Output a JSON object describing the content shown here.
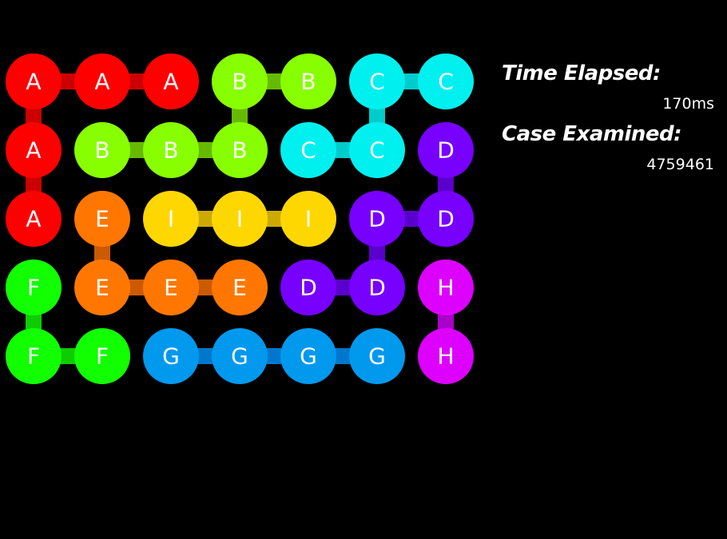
{
  "grid": {
    "rows": [
      [
        "A",
        "A",
        "A",
        "B",
        "B",
        "C",
        "C"
      ],
      [
        "A",
        "B",
        "B",
        "B",
        "C",
        "C",
        "D"
      ],
      [
        "A",
        "E",
        "I",
        "I",
        "I",
        "D",
        "D"
      ],
      [
        "F",
        "E",
        "E",
        "E",
        "D",
        "D",
        "H"
      ],
      [
        "F",
        "F",
        "G",
        "G",
        "G",
        "G",
        "H"
      ]
    ],
    "paths": {
      "A": [
        [
          1,
          3
        ],
        [
          1,
          2
        ],
        [
          1,
          1
        ],
        [
          2,
          1
        ],
        [
          3,
          1
        ]
      ],
      "B": [
        [
          2,
          2
        ],
        [
          2,
          3
        ],
        [
          2,
          4
        ],
        [
          1,
          4
        ],
        [
          1,
          5
        ]
      ],
      "C": [
        [
          2,
          5
        ],
        [
          2,
          6
        ],
        [
          1,
          6
        ],
        [
          1,
          7
        ]
      ],
      "D": [
        [
          4,
          5
        ],
        [
          4,
          6
        ],
        [
          3,
          6
        ],
        [
          3,
          7
        ],
        [
          2,
          7
        ]
      ],
      "E": [
        [
          3,
          2
        ],
        [
          4,
          2
        ],
        [
          4,
          3
        ],
        [
          4,
          4
        ]
      ],
      "F": [
        [
          4,
          1
        ],
        [
          5,
          1
        ],
        [
          5,
          2
        ]
      ],
      "G": [
        [
          5,
          3
        ],
        [
          5,
          4
        ],
        [
          5,
          5
        ],
        [
          5,
          6
        ]
      ],
      "H": [
        [
          4,
          7
        ],
        [
          5,
          7
        ]
      ],
      "I": [
        [
          3,
          3
        ],
        [
          3,
          4
        ],
        [
          3,
          5
        ]
      ]
    },
    "colors": {
      "A": "#ff0000",
      "B": "#88ff00",
      "C": "#00f0f0",
      "D": "#7700ff",
      "E": "#ff7700",
      "F": "#11ff00",
      "G": "#0099ee",
      "H": "#dd00ff",
      "I": "#ffd700"
    },
    "link_colors": {
      "A": "#cc0000",
      "B": "#66bb00",
      "C": "#00cccc",
      "D": "#5a00cc",
      "E": "#cc5a00",
      "F": "#0ecc00",
      "G": "#0077cc",
      "H": "#aa00cc",
      "I": "#ccaa00"
    }
  },
  "stats": {
    "time_label": "Time Elapsed:",
    "time_value": "170ms",
    "case_label": "Case Examined:",
    "case_value": "4759461"
  }
}
